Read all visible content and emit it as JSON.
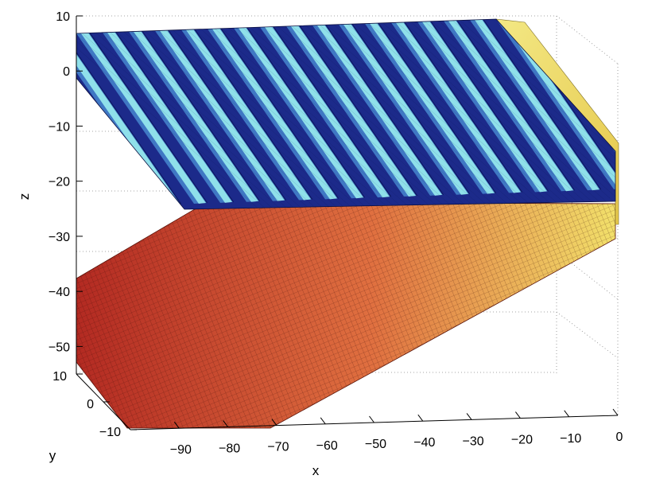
{
  "chart_data": {
    "type": "surface3d",
    "title": "",
    "xlabel": "x",
    "ylabel": "y",
    "zlabel": "z",
    "xlim": [
      -100,
      0
    ],
    "ylim": [
      -10,
      10
    ],
    "zlim": [
      -55,
      10
    ],
    "x_ticks": [
      -90,
      -80,
      -70,
      -60,
      -50,
      -40,
      -30,
      -20,
      -10,
      0
    ],
    "y_ticks": [
      -10,
      0,
      10
    ],
    "z_ticks": [
      10,
      0,
      -10,
      -20,
      -30,
      -40,
      -50
    ],
    "x_tick_labels": [
      "−90",
      "−80",
      "−70",
      "−60",
      "−50",
      "−40",
      "−30",
      "−20",
      "−10",
      "0"
    ],
    "y_tick_labels": [
      "−10",
      "0",
      "10"
    ],
    "z_tick_labels": [
      "10",
      "0",
      "−10",
      "−20",
      "−30",
      "−40",
      "−50"
    ],
    "grid": true,
    "colormap": "jet",
    "surfaces": [
      {
        "description": "corrugated upper surface",
        "z_range": [
          -20,
          10
        ],
        "ridges": 17,
        "colors": [
          "#1a2f9e",
          "#6fd2e6"
        ]
      },
      {
        "description": "inclined lower plane",
        "z_range": [
          -55,
          -25
        ],
        "colors": [
          "#b8241e",
          "#e0603a",
          "#f3e36a"
        ]
      }
    ],
    "colors": {
      "upper_dark": "#1c2a8a",
      "upper_mid": "#3f78c4",
      "upper_light": "#8fe0ea",
      "lower_red": "#b32a22",
      "lower_orange": "#e46b3c",
      "lower_yellow": "#f2e06a"
    }
  }
}
